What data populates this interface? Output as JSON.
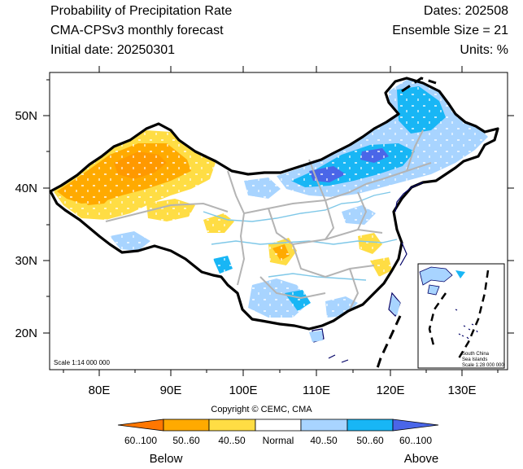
{
  "header": {
    "title": "Probability of Precipitation Rate",
    "subtitle": "CMA-CPSv3 monthly forecast",
    "initial_date": "Initial date: 20250301",
    "dates": "Dates: 202508",
    "ensemble": "Ensemble Size = 21",
    "units": "Units: %"
  },
  "map": {
    "lon_ticks": [
      "80E",
      "90E",
      "100E",
      "110E",
      "120E",
      "130E"
    ],
    "lat_ticks": [
      "50N",
      "40N",
      "30N",
      "20N"
    ],
    "lon_range": [
      73,
      135
    ],
    "lat_range": [
      15,
      55
    ],
    "scale_text": "Scale 1:14 000 000",
    "inset_text": [
      "South China",
      "Sea Islands",
      "Scale 1:28 000 000"
    ]
  },
  "copyright": "Copyright © CEMC, CMA",
  "legend": {
    "labels": [
      "60..100",
      "50..60",
      "40..50",
      "Normal",
      "40..50",
      "50..60",
      "60..100"
    ],
    "colors": [
      "#ff7700",
      "#ffaa00",
      "#ffdd44",
      "#ffffff",
      "#a8d4ff",
      "#18b6f5",
      "#4a66e8"
    ],
    "below": "Below",
    "above": "Above"
  }
}
